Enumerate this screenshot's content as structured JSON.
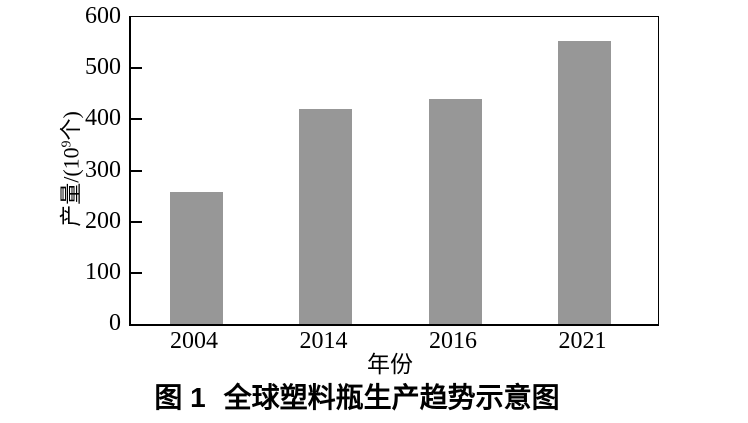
{
  "figure": {
    "caption_label": "图 1",
    "caption_title": "全球塑料瓶生产趋势示意图"
  },
  "chart_data": {
    "type": "bar",
    "title": "图 1 全球塑料瓶生产趋势示意图",
    "categories": [
      "2004",
      "2014",
      "2016",
      "2021"
    ],
    "values": [
      258,
      421,
      439,
      553
    ],
    "xlabel": "年份",
    "ylabel": "产量/(10⁹个)",
    "ylabel_parts": {
      "prefix": "产量/(10",
      "sup": "9",
      "suffix": "个)"
    },
    "ylim": [
      0,
      600
    ],
    "yticks": [
      0,
      100,
      200,
      300,
      400,
      500,
      600
    ],
    "bar_color": "#979797",
    "axis_color": "#000000",
    "grid": false,
    "legend": "none"
  }
}
